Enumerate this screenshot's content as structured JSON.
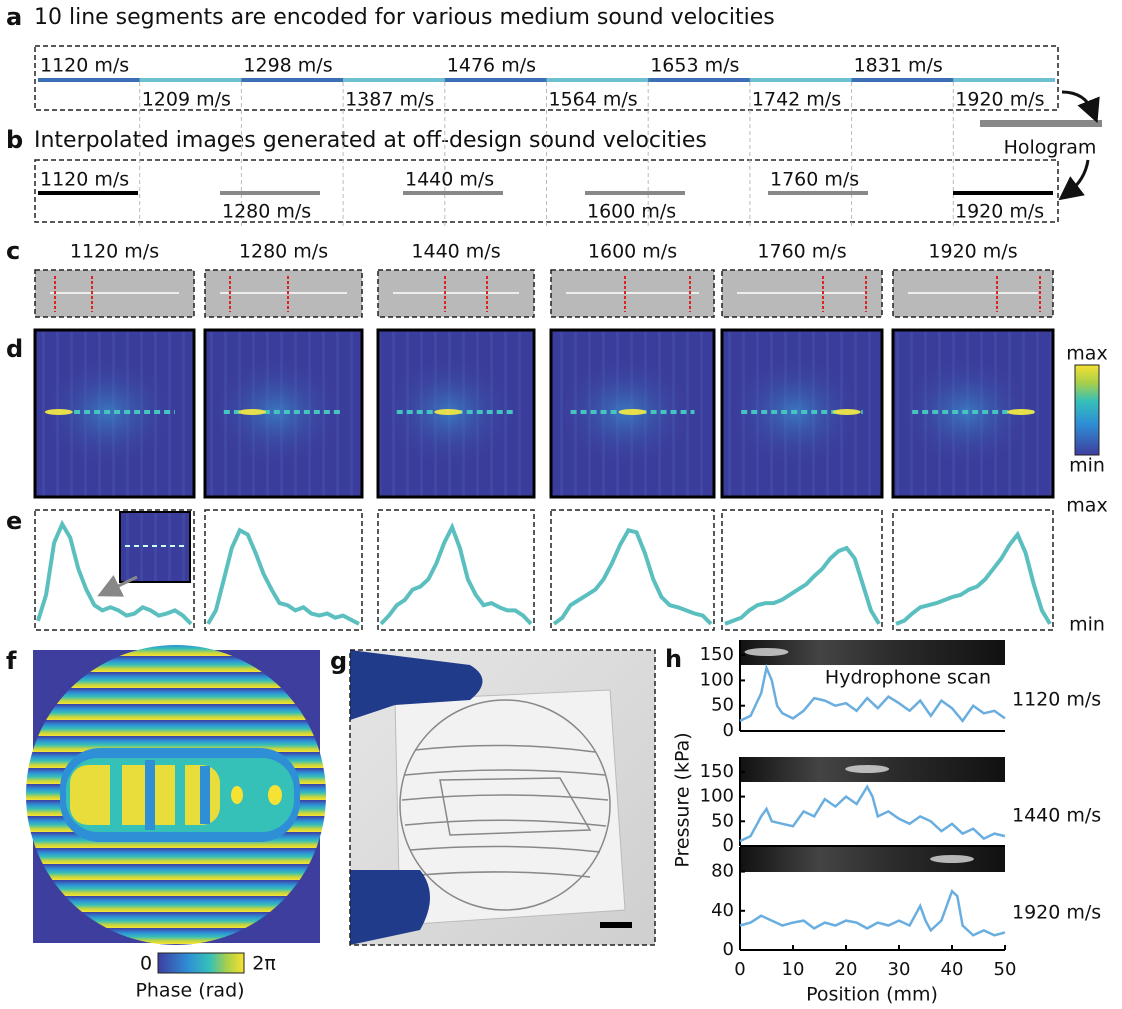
{
  "panels": {
    "a": {
      "label": "a",
      "title": "10 line segments are encoded for various medium sound velocities",
      "segments": [
        "1120 m/s",
        "1209 m/s",
        "1298 m/s",
        "1387 m/s",
        "1476 m/s",
        "1564 m/s",
        "1653 m/s",
        "1742 m/s",
        "1831 m/s",
        "1920 m/s"
      ],
      "target": "Hologram"
    },
    "b": {
      "label": "b",
      "title": "Interpolated images generated at off-design sound velocities",
      "segments": [
        "1120 m/s",
        "1280 m/s",
        "1440 m/s",
        "1600 m/s",
        "1760 m/s",
        "1920 m/s"
      ]
    },
    "c": {
      "label": "c",
      "columns": [
        "1120 m/s",
        "1280 m/s",
        "1440 m/s",
        "1600 m/s",
        "1760 m/s",
        "1920 m/s"
      ]
    },
    "d": {
      "label": "d",
      "colorbar": {
        "max": "max",
        "min": "min"
      }
    },
    "e": {
      "label": "e",
      "axis": {
        "max": "max",
        "min": "min"
      },
      "profiles": [
        [
          0.05,
          0.3,
          0.8,
          0.98,
          0.85,
          0.55,
          0.35,
          0.2,
          0.15,
          0.18,
          0.15,
          0.1,
          0.12,
          0.18,
          0.15,
          0.1,
          0.12,
          0.15,
          0.1,
          0.02
        ],
        [
          0.02,
          0.15,
          0.45,
          0.75,
          0.92,
          0.88,
          0.7,
          0.5,
          0.35,
          0.22,
          0.2,
          0.15,
          0.18,
          0.12,
          0.1,
          0.12,
          0.08,
          0.1,
          0.06,
          0.02
        ],
        [
          0.02,
          0.1,
          0.2,
          0.25,
          0.35,
          0.38,
          0.45,
          0.6,
          0.8,
          0.95,
          0.75,
          0.45,
          0.3,
          0.2,
          0.22,
          0.18,
          0.15,
          0.15,
          0.1,
          0.02
        ],
        [
          0.02,
          0.08,
          0.2,
          0.25,
          0.3,
          0.35,
          0.45,
          0.6,
          0.78,
          0.92,
          0.9,
          0.7,
          0.45,
          0.28,
          0.2,
          0.18,
          0.15,
          0.12,
          0.1,
          0.02
        ],
        [
          0.02,
          0.05,
          0.08,
          0.15,
          0.2,
          0.22,
          0.22,
          0.25,
          0.3,
          0.35,
          0.4,
          0.48,
          0.55,
          0.65,
          0.72,
          0.75,
          0.65,
          0.4,
          0.15,
          0.02
        ],
        [
          0.02,
          0.05,
          0.12,
          0.18,
          0.2,
          0.22,
          0.25,
          0.28,
          0.3,
          0.35,
          0.38,
          0.45,
          0.55,
          0.65,
          0.78,
          0.88,
          0.7,
          0.4,
          0.15,
          0.02
        ]
      ]
    },
    "f": {
      "label": "f",
      "colorbar": {
        "min": "0",
        "max": "2π",
        "label": "Phase (rad)"
      }
    },
    "g": {
      "label": "g"
    },
    "h": {
      "label": "h",
      "annotation": "Hydrophone scan",
      "ylabel": "Pressure (kPa)",
      "xlabel": "Position (mm)"
    }
  },
  "chart_data": [
    {
      "type": "line",
      "title": "1120 m/s",
      "color": "#6aaee0",
      "x": [
        0,
        2,
        4,
        5,
        6,
        7,
        8,
        10,
        12,
        14,
        16,
        18,
        20,
        22,
        24,
        26,
        28,
        30,
        32,
        34,
        36,
        38,
        40,
        42,
        44,
        46,
        48,
        50
      ],
      "values": [
        20,
        30,
        75,
        125,
        100,
        50,
        35,
        25,
        40,
        65,
        60,
        50,
        55,
        40,
        65,
        45,
        68,
        55,
        40,
        60,
        30,
        60,
        45,
        20,
        50,
        35,
        40,
        25
      ],
      "xlim": [
        0,
        50
      ],
      "ylim": [
        0,
        170
      ],
      "yticks": [
        0,
        50,
        100,
        150
      ]
    },
    {
      "type": "line",
      "title": "1440 m/s",
      "color": "#6aaee0",
      "x": [
        0,
        2,
        4,
        5,
        6,
        8,
        10,
        12,
        14,
        16,
        18,
        20,
        22,
        24,
        25,
        26,
        28,
        30,
        32,
        34,
        36,
        38,
        40,
        42,
        44,
        46,
        48,
        50
      ],
      "values": [
        10,
        20,
        60,
        75,
        50,
        45,
        40,
        70,
        60,
        95,
        80,
        100,
        85,
        120,
        100,
        60,
        70,
        55,
        45,
        60,
        50,
        30,
        45,
        25,
        35,
        15,
        25,
        20
      ],
      "xlim": [
        0,
        50
      ],
      "ylim": [
        0,
        170
      ],
      "yticks": [
        0,
        50,
        100,
        150
      ]
    },
    {
      "type": "line",
      "title": "1920 m/s",
      "color": "#6aaee0",
      "x": [
        0,
        2,
        4,
        6,
        8,
        10,
        12,
        14,
        16,
        18,
        20,
        22,
        24,
        26,
        28,
        30,
        32,
        34,
        35,
        36,
        38,
        40,
        41,
        42,
        44,
        46,
        48,
        50
      ],
      "values": [
        25,
        28,
        35,
        30,
        25,
        28,
        30,
        22,
        28,
        25,
        30,
        28,
        22,
        28,
        25,
        30,
        25,
        45,
        30,
        20,
        30,
        60,
        55,
        25,
        15,
        20,
        15,
        18
      ],
      "xlim": [
        0,
        50
      ],
      "ylim": [
        0,
        100
      ],
      "yticks": [
        0,
        40,
        80
      ],
      "xticks": [
        0,
        10,
        20,
        30,
        40,
        50
      ]
    }
  ]
}
